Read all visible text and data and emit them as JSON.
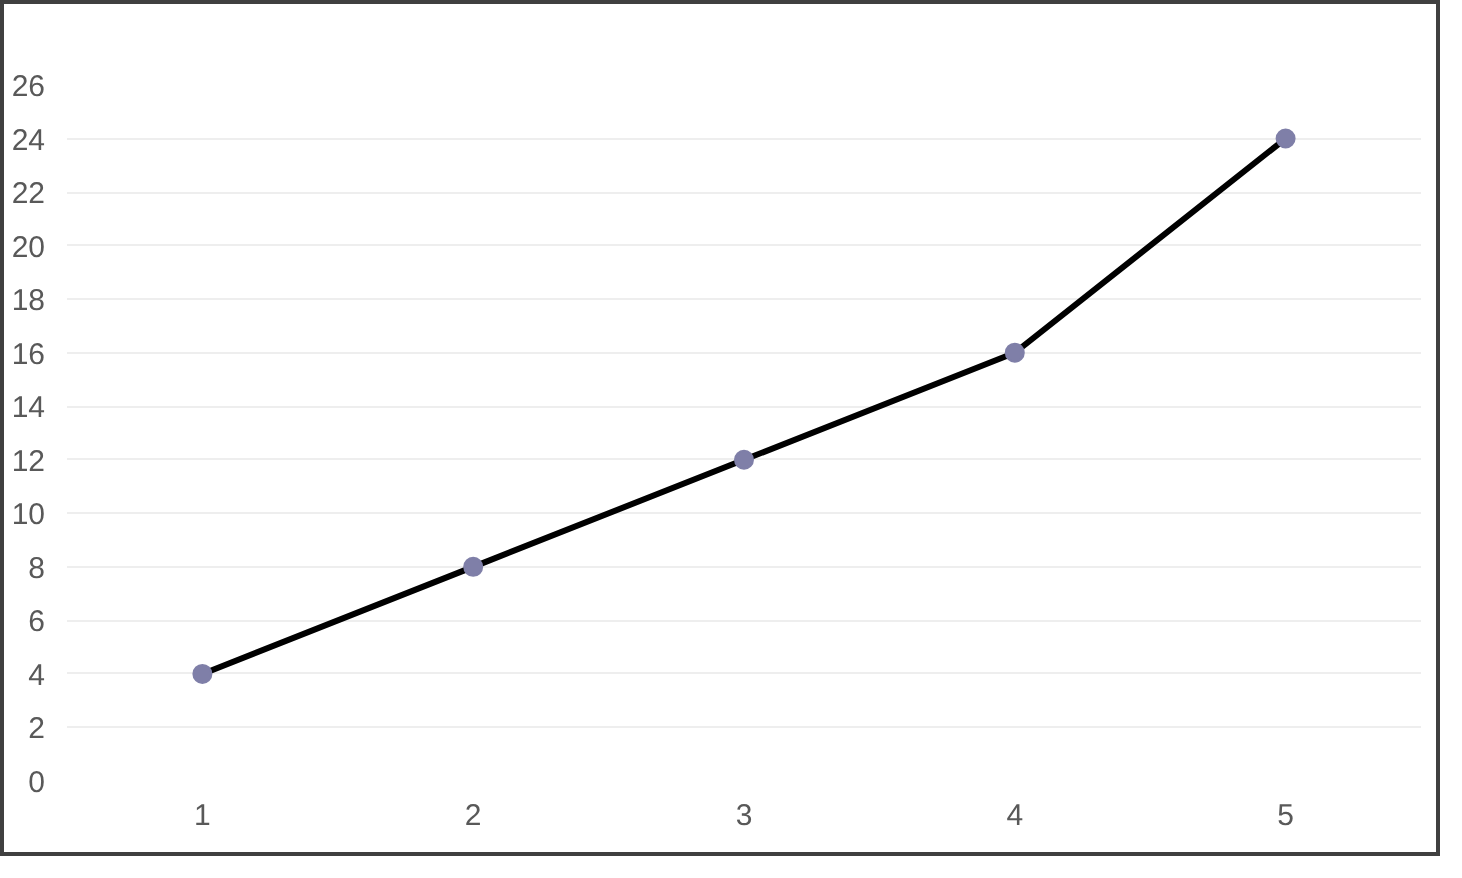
{
  "chart_data": {
    "type": "line",
    "categories": [
      "1",
      "2",
      "3",
      "4",
      "5"
    ],
    "series": [
      {
        "color": "#000000",
        "colors": [
          "#7f7fa8",
          "#7f7fa8",
          "#7f7fa8",
          "#7f7fa8",
          "#7f7fa8"
        ],
        "values": [
          4,
          8,
          12,
          16,
          24
        ]
      }
    ],
    "ylim": [
      0,
      26
    ],
    "yticks": [
      0,
      2,
      4,
      6,
      8,
      10,
      12,
      14,
      16,
      18,
      20,
      22,
      24,
      26
    ],
    "grid": "y",
    "marker": "circle",
    "line_style": "solid"
  }
}
